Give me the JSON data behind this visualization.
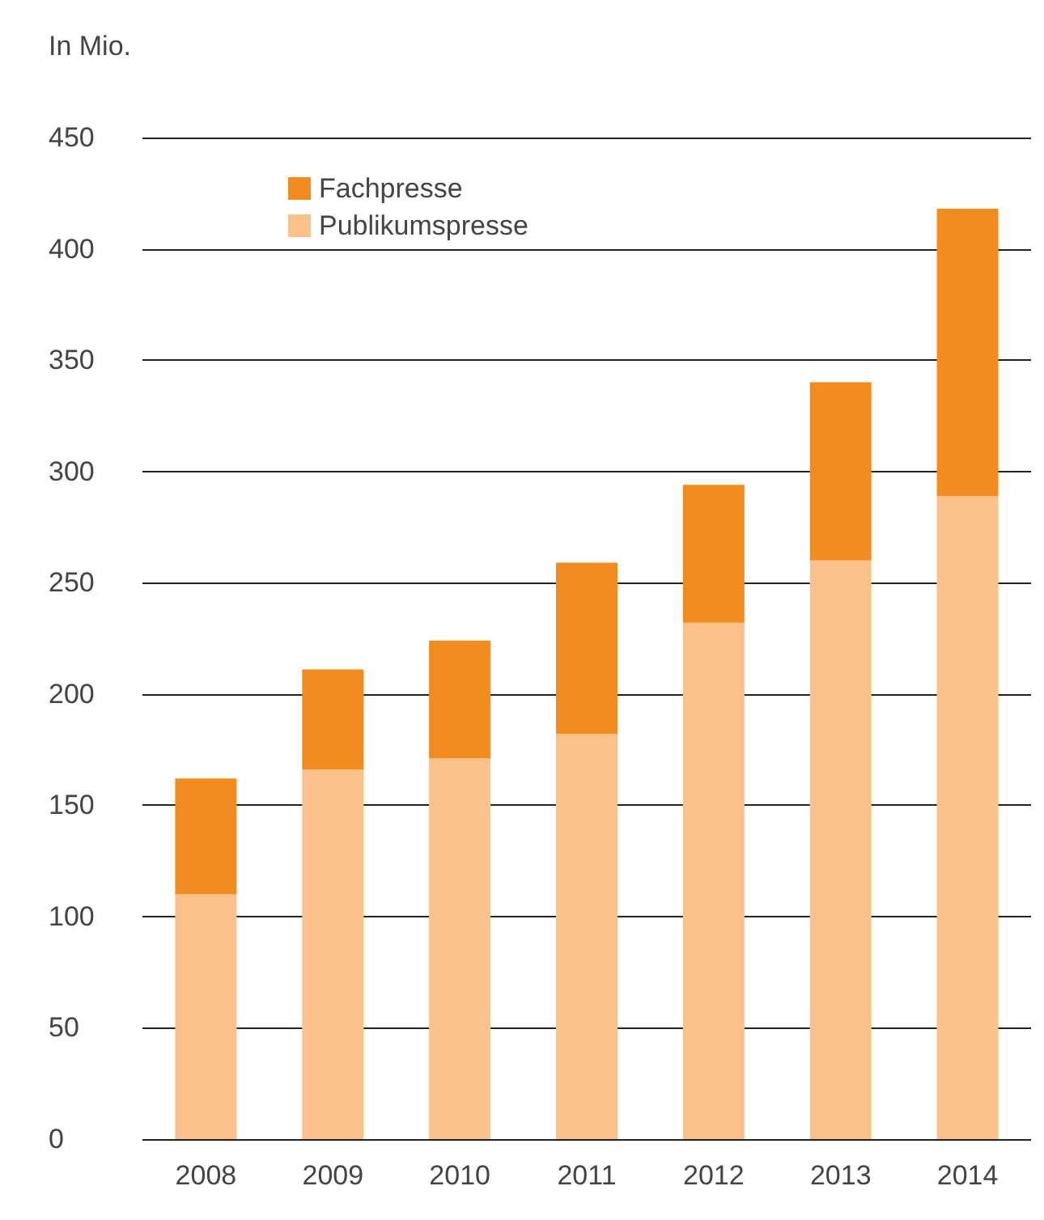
{
  "chart_data": {
    "type": "bar",
    "stacked": true,
    "ylabel": "In Mio.",
    "categories": [
      "2008",
      "2009",
      "2010",
      "2011",
      "2012",
      "2013",
      "2014"
    ],
    "series": [
      {
        "name": "Publikumspresse",
        "color": "#fbc18a",
        "values": [
          110,
          166,
          171,
          182,
          232,
          260,
          289
        ]
      },
      {
        "name": "Fachpresse",
        "color": "#f28c1e",
        "values": [
          52,
          45,
          53,
          77,
          62,
          80,
          129
        ]
      }
    ],
    "ylim": [
      0,
      450
    ],
    "yticks": [
      0,
      50,
      100,
      150,
      200,
      250,
      300,
      350,
      400,
      450
    ],
    "grid": "y",
    "legend": "top left"
  }
}
